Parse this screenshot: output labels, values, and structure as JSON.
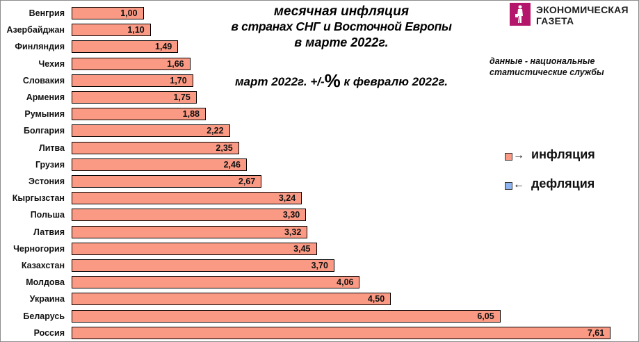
{
  "header": {
    "title_line1": "месячная инфляция",
    "title_line2": "в странах СНГ и Восточной Европы",
    "title_line3": "в марте 2022г.",
    "subtitle_pre": "март 2022г.  +/-",
    "subtitle_pct": "%",
    "subtitle_post": "  к февралю 2022г."
  },
  "logo": {
    "line1": "ЭКОНОМИЧЕСКАЯ",
    "line2": "ГАЗЕТА",
    "color": "#b3166a"
  },
  "source_note": {
    "line1": "данные - национальные",
    "line2": "статистические службы"
  },
  "legend": [
    {
      "arrow": "→",
      "label": "инфляция",
      "color": "#fa9a84"
    },
    {
      "arrow": "←",
      "label": "дефляция",
      "color": "#8db4f0"
    }
  ],
  "chart_data": {
    "type": "bar",
    "orientation": "horizontal",
    "title": "месячная инфляция в странах СНГ и Восточной Европы в марте 2022г.",
    "subtitle": "март 2022г. +/-% к февралю 2022г.",
    "xlabel": "",
    "ylabel": "",
    "xlim": [
      0,
      8
    ],
    "grid": false,
    "legend_position": "right",
    "categories": [
      "Венгрия",
      "Азербайджан",
      "Финляндия",
      "Чехия",
      "Словакия",
      "Армения",
      "Румыния",
      "Болгария",
      "Литва",
      "Грузия",
      "Эстония",
      "Кыргызстан",
      "Польша",
      "Латвия",
      "Черногория",
      "Казахстан",
      "Молдова",
      "Украина",
      "Беларусь",
      "Россия"
    ],
    "values": [
      1.0,
      1.1,
      1.49,
      1.66,
      1.7,
      1.75,
      1.88,
      2.22,
      2.35,
      2.46,
      2.67,
      3.24,
      3.3,
      3.32,
      3.45,
      3.7,
      4.06,
      4.5,
      6.05,
      7.61
    ],
    "value_labels": [
      "1,00",
      "1,10",
      "1,49",
      "1,66",
      "1,70",
      "1,75",
      "1,88",
      "2,22",
      "2,35",
      "2,46",
      "2,67",
      "3,24",
      "3,30",
      "3,32",
      "3,45",
      "3,70",
      "4,06",
      "4,50",
      "6,05",
      "7,61"
    ],
    "series": [
      {
        "name": "инфляция",
        "color": "#fa9a84"
      },
      {
        "name": "дефляция",
        "color": "#8db4f0"
      }
    ],
    "annotations": [
      "данные - национальные статистические службы"
    ]
  }
}
